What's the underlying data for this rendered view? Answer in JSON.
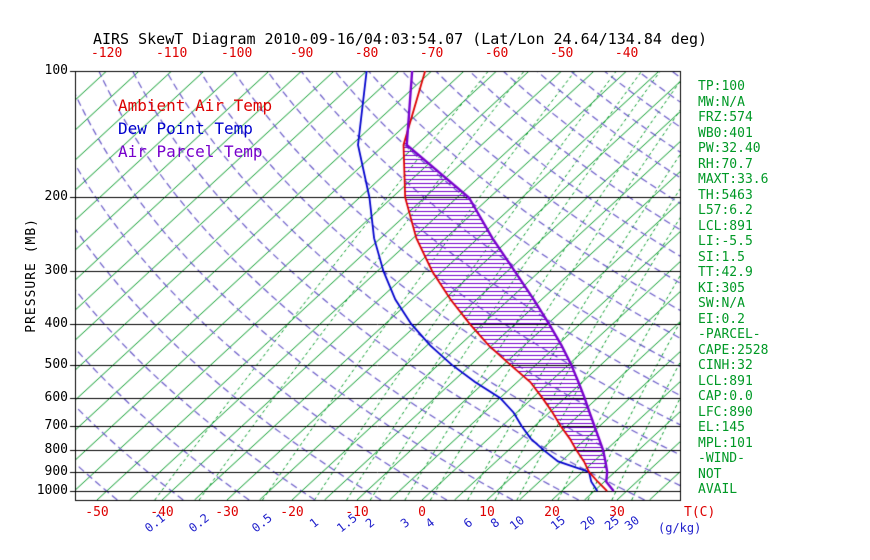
{
  "title": "AIRS SkewT Diagram 2010-09-16/04:03:54.07 (Lat/Lon 24.64/134.84 deg)",
  "legend": {
    "ambient": "Ambient Air Temp",
    "dewpoint": "Dew Point Temp",
    "parcel": "Air Parcel Temp"
  },
  "axes": {
    "pressure_axis_label": "PRESSURE (MB)",
    "pressure_ticks": [
      100,
      200,
      300,
      400,
      500,
      600,
      700,
      800,
      900,
      1000
    ],
    "top_temp_ticks": [
      -120,
      -110,
      -100,
      -90,
      -80,
      -70,
      -60,
      -50,
      -40
    ],
    "bottom_temp_ticks": [
      -50,
      -40,
      -30,
      -20,
      -10,
      0,
      10,
      20,
      30
    ],
    "temp_unit_label": "T(C)",
    "mixing_ratio_ticks": [
      0.1,
      0.2,
      0.5,
      1,
      1.5,
      2,
      3,
      4,
      6,
      8,
      10,
      15,
      20,
      25,
      30
    ],
    "mixing_ratio_unit_label": "(g/kg)"
  },
  "stats": [
    "TP:100",
    "MW:N/A",
    "FRZ:574",
    "WB0:401",
    "PW:32.40",
    "RH:70.7",
    "MAXT:33.6",
    "TH:5463",
    "L57:6.2",
    "LCL:891",
    "LI:-5.5",
    "SI:1.5",
    "TT:42.9",
    "KI:305",
    "SW:N/A",
    "EI:0.2",
    "-PARCEL-",
    "CAPE:2528",
    "CINH:32",
    "LCL:891",
    "CAP:0.0",
    "LFC:890",
    "EL:145",
    "MPL:101",
    "-WIND-",
    "NOT",
    "AVAIL"
  ],
  "colors": {
    "ambient": "#dd0000",
    "dewpoint": "#0000cd",
    "parcel": "#7700cc",
    "isotherm": "#009926",
    "mixing_ratio_line": "#009926",
    "dry_adiabat": "#6a5bc8",
    "pressure_line": "#000000",
    "stats_text": "#009926",
    "temp_labels": "#dd0000",
    "mixing_labels": "#2222cc",
    "title_text": "#000000"
  },
  "chart_data": {
    "type": "line",
    "title": "AIRS SkewT Diagram 2010-09-16/04:03:54.07 (Lat/Lon 24.64/134.84 deg)",
    "xlabel": "T(C)",
    "ylabel": "PRESSURE (MB)",
    "x_range_bottom_c": [
      -50,
      30
    ],
    "x_range_top_c": [
      -120,
      -40
    ],
    "pressure_range_mb": [
      100,
      1050
    ],
    "pressure_scale": "log",
    "skew_c_per_decade": 70,
    "legend_position": "top-left",
    "pressure_levels_mb": [
      1000,
      950,
      900,
      850,
      800,
      750,
      700,
      650,
      600,
      550,
      500,
      450,
      400,
      350,
      300,
      250,
      200,
      150,
      100
    ],
    "series": [
      {
        "name": "Ambient Air Temp",
        "color_key": "ambient",
        "temps_c": [
          27,
          24,
          21,
          18.5,
          15.5,
          12.5,
          9,
          5.5,
          1.5,
          -3,
          -9,
          -15.5,
          -22,
          -29,
          -36.5,
          -44.5,
          -53,
          -62,
          -71
        ]
      },
      {
        "name": "Dew Point Temp",
        "color_key": "dewpoint",
        "temps_c": [
          25.5,
          23,
          21,
          14.5,
          10.5,
          6.5,
          3,
          -0.5,
          -5,
          -11.5,
          -18,
          -24.5,
          -31,
          -37.5,
          -44,
          -51,
          -58.5,
          -69,
          -80
        ]
      },
      {
        "name": "Air Parcel Temp",
        "color_key": "parcel",
        "temps_c": [
          28,
          25.3,
          23.8,
          21.8,
          19.6,
          17,
          14.2,
          11.2,
          8,
          4.4,
          0.4,
          -4.3,
          -9.8,
          -16.2,
          -23.8,
          -32.8,
          -43.2,
          -61.5,
          -73
        ]
      }
    ],
    "grid": {
      "isotherm_step_c": 5,
      "isotherm_range_c": [
        -125,
        45
      ],
      "dry_adiabat_step_c": 10,
      "dry_adiabat_range_c": [
        -60,
        200
      ],
      "mixing_ratio_lines_g_kg": [
        0.1,
        0.2,
        0.5,
        1,
        1.5,
        2,
        3,
        4,
        6,
        8,
        10,
        15,
        20,
        25,
        30
      ],
      "hatch_between": [
        "Ambient Air Temp",
        "Air Parcel Temp"
      ],
      "hatch_pressure_range_mb": [
        880,
        100
      ]
    }
  }
}
